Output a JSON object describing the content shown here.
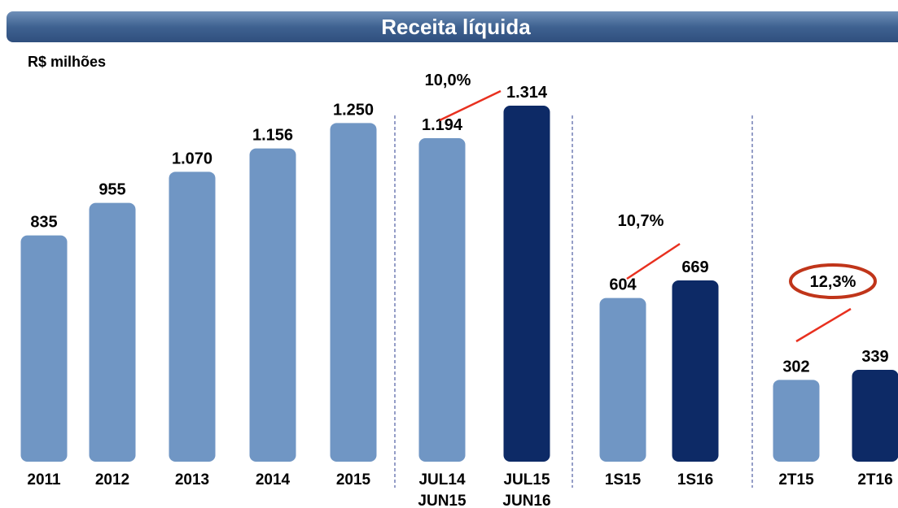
{
  "chart_data": {
    "type": "bar",
    "title": "Receita líquida",
    "y_label": "R$ milhões",
    "categories": [
      "2011",
      "2012",
      "2013",
      "2014",
      "2015",
      "JUL14\nJUN15",
      "JUL15\nJUN16",
      "1S15",
      "1S16",
      "2T15",
      "2T16"
    ],
    "values": [
      835,
      955,
      1070,
      1156,
      1250,
      1194,
      1314,
      604,
      669,
      302,
      339
    ],
    "value_labels": [
      "835",
      "955",
      "1.070",
      "1.156",
      "1.250",
      "1.194",
      "1.314",
      "604",
      "669",
      "302",
      "339"
    ],
    "colors": [
      "#7096c4",
      "#7096c4",
      "#7096c4",
      "#7096c4",
      "#7096c4",
      "#7096c4",
      "#0d2a66",
      "#7096c4",
      "#0d2a66",
      "#7096c4",
      "#0d2a66"
    ],
    "annotations": [
      "10,0%",
      "10,7%",
      "12,3%"
    ]
  }
}
